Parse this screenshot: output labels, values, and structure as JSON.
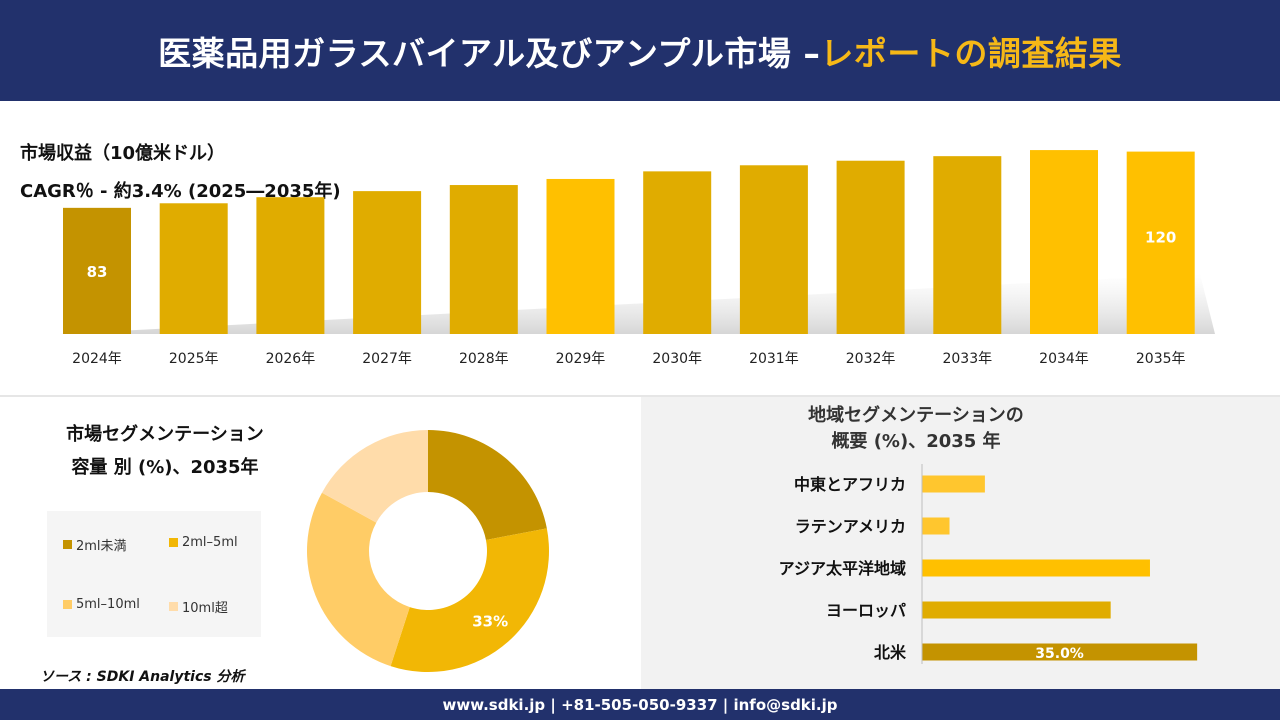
{
  "header": {
    "title_main": "医薬品用ガラスバイアル及びアンプル市場",
    "title_sep": " –",
    "title_accent": "レポートの調査結果"
  },
  "revenue": {
    "label": "市場収益（10億米ドル）",
    "cagr": "CAGR％ - 約3.4% (2025―2035年)"
  },
  "segment": {
    "title_line1": "市場セグメンテーション",
    "title_line2": "容量 別 (%)、2035年"
  },
  "region": {
    "title_line1": "地域セグメンテーションの",
    "title_line2": "概要 (%)、2035 年"
  },
  "source": "ソース : SDKI Analytics 分析",
  "footer": "www.sdki.jp | +81-505-050-9337 | info@sdki.jp",
  "colors": {
    "header_bg": "#22316c",
    "accent": "#f6b817",
    "bar_gold": "#e0ac00",
    "bar_dark": "#c49300",
    "bar_bright": "#ffc000"
  },
  "chart_data": [
    {
      "type": "bar",
      "title": "市場収益（10億米ドル）",
      "categories": [
        "2024年",
        "2025年",
        "2026年",
        "2027年",
        "2028年",
        "2029年",
        "2030年",
        "2031年",
        "2032年",
        "2033年",
        "2034年",
        "2035年"
      ],
      "values": [
        83,
        86,
        90,
        94,
        98,
        102,
        107,
        111,
        114,
        117,
        121,
        120
      ],
      "data_labels": {
        "0": "83",
        "11": "120"
      },
      "colors": [
        "#c49300",
        "#e0ac00",
        "#e0ac00",
        "#e0ac00",
        "#e0ac00",
        "#ffc000",
        "#e0ac00",
        "#e0ac00",
        "#e0ac00",
        "#e0ac00",
        "#ffc000",
        "#ffc000"
      ],
      "ylim": [
        0,
        125
      ],
      "grid": false
    },
    {
      "type": "pie",
      "title": "市場セグメンテーション 容量 別 (%)、2035年",
      "labels": [
        "2ml未満",
        "2ml–5ml",
        "5ml–10ml",
        "10ml超"
      ],
      "values": [
        22,
        33,
        28,
        17
      ],
      "data_labels": [
        "",
        "33%",
        "",
        ""
      ],
      "colors": [
        "#c49300",
        "#f2b705",
        "#ffcc66",
        "#ffdcaa"
      ],
      "legend": "left"
    },
    {
      "type": "bar",
      "orientation": "horizontal",
      "title": "地域セグメンテーションの 概要 (%)、2035 年",
      "categories": [
        "中東とアフリカ",
        "ラテンアメリカ",
        "アジア太平洋地域",
        "ヨーロッパ",
        "北米"
      ],
      "values": [
        8.0,
        3.5,
        29.0,
        24.0,
        35.0
      ],
      "data_labels": [
        "",
        "",
        "",
        "",
        "35.0%"
      ],
      "colors": [
        "#ffc62e",
        "#ffc62e",
        "#ffc000",
        "#e0ac00",
        "#c49300"
      ],
      "xlim": [
        0,
        36
      ]
    }
  ]
}
